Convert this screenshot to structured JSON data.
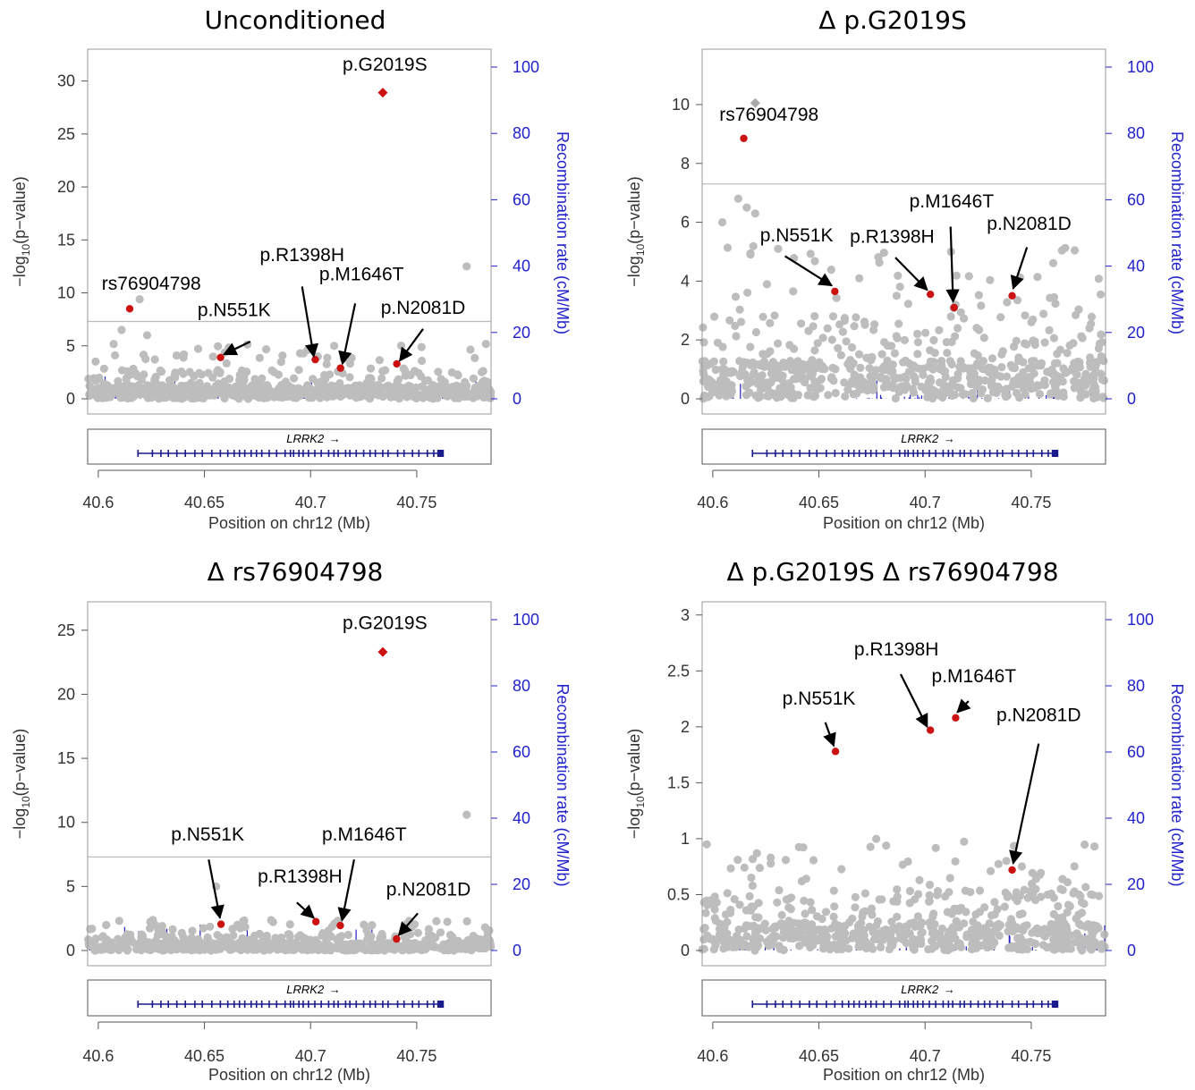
{
  "shared": {
    "ylabel": "−log10(p‑value)",
    "ylabel_main": "−log",
    "ylabel_sub": "10",
    "ylabel_rest": "(p−value)",
    "y2label": "Recombination rate (cM/Mb)",
    "xlabel": "Position on chr12 (Mb)",
    "gene": "LRRK2",
    "gene_arrow": "→",
    "xticks": [
      40.6,
      40.65,
      40.7,
      40.75
    ],
    "xtick_labels": [
      "40.6",
      "40.65",
      "40.7",
      "40.75"
    ],
    "xlim": [
      40.595,
      40.785
    ],
    "y2ticks": [
      0,
      20,
      40,
      60,
      80,
      100
    ],
    "y2lim": [
      0,
      100
    ],
    "gw_threshold": 7.3,
    "colors": {
      "background_points": "#bdbdbd",
      "highlight": "#cc1111",
      "recomb": "#2222cc",
      "gene": "#1a1a8c",
      "threshold": "#bbbbbb"
    },
    "gene_exons": [
      40.6187,
      40.6255,
      40.6295,
      40.633,
      40.637,
      40.641,
      40.6455,
      40.649,
      40.6535,
      40.6575,
      40.661,
      40.664,
      40.6665,
      40.669,
      40.672,
      40.6745,
      40.677,
      40.6805,
      40.684,
      40.688,
      40.6905,
      40.692,
      40.6945,
      40.6965,
      40.699,
      40.702,
      40.705,
      40.7085,
      40.711,
      40.713,
      40.7165,
      40.7185,
      40.7215,
      40.725,
      40.728,
      40.7305,
      40.734,
      40.7365,
      40.741,
      40.744,
      40.748,
      40.751,
      40.755,
      40.758,
      40.76,
      40.7615
    ]
  },
  "chart_data": [
    {
      "type": "scatter",
      "title": "Unconditioned",
      "ylim": [
        0,
        32.5
      ],
      "yticks": [
        0,
        5,
        10,
        15,
        20,
        25,
        30
      ],
      "max_bg": 5.2,
      "diamond_red": {
        "x": 40.734,
        "y": 28.9
      },
      "diamond_grey": null,
      "highlights": [
        {
          "label": "rs76904798",
          "x": 40.6148,
          "y": 8.5
        },
        {
          "label": "p.N551K",
          "x": 40.6576,
          "y": 3.9
        },
        {
          "label": "p.R1398H",
          "x": 40.7022,
          "y": 3.7
        },
        {
          "label": "p.M1646T",
          "x": 40.7141,
          "y": 2.9
        },
        {
          "label": "p.N2081D",
          "x": 40.7406,
          "y": 3.3
        }
      ],
      "extra_grey": [
        {
          "x": 40.7735,
          "y": 12.5
        },
        {
          "x": 40.6195,
          "y": 9.4
        },
        {
          "x": 40.611,
          "y": 6.5
        },
        {
          "x": 40.623,
          "y": 6.0
        }
      ],
      "labels": [
        {
          "text": "p.G2019S",
          "tx": 40.735,
          "ty": 31.0,
          "anchor": "middle",
          "arrow": null
        },
        {
          "text": "rs76904798",
          "tx": 40.625,
          "ty": 10.3,
          "anchor": "middle",
          "arrow": null
        },
        {
          "text": "p.N551K",
          "tx": 40.664,
          "ty": 7.8,
          "anchor": "middle",
          "arrow": [
            40.6716,
            5.4,
            40.6592,
            4.2
          ]
        },
        {
          "text": "p.R1398H",
          "tx": 40.696,
          "ty": 13.0,
          "anchor": "middle",
          "arrow": [
            40.696,
            10.6,
            40.7015,
            4.0
          ]
        },
        {
          "text": "p.M1646T",
          "tx": 40.724,
          "ty": 11.2,
          "anchor": "middle",
          "arrow": [
            40.721,
            9.0,
            40.715,
            3.3
          ]
        },
        {
          "text": "p.N2081D",
          "tx": 40.753,
          "ty": 8.0,
          "anchor": "middle",
          "arrow": [
            40.753,
            6.6,
            40.742,
            3.6
          ]
        }
      ]
    },
    {
      "type": "scatter",
      "title": "Δ p.G2019S",
      "ylim": [
        0,
        11.7
      ],
      "yticks": [
        0,
        2,
        4,
        6,
        8,
        10
      ],
      "max_bg": 5.2,
      "diamond_red": null,
      "diamond_grey": {
        "x": 40.62,
        "y": 10.05
      },
      "highlights": [
        {
          "label": "rs76904798",
          "x": 40.6146,
          "y": 8.85
        },
        {
          "label": "p.N551K",
          "x": 40.6575,
          "y": 3.65
        },
        {
          "label": "p.R1398H",
          "x": 40.7025,
          "y": 3.55
        },
        {
          "label": "p.M1646T",
          "x": 40.7137,
          "y": 3.1
        },
        {
          "label": "p.N2081D",
          "x": 40.741,
          "y": 3.5
        }
      ],
      "extra_grey": [
        {
          "x": 40.612,
          "y": 6.8
        },
        {
          "x": 40.616,
          "y": 6.5
        },
        {
          "x": 40.6045,
          "y": 6.0
        },
        {
          "x": 40.62,
          "y": 6.3
        }
      ],
      "labels": [
        {
          "text": "rs76904798",
          "tx": 40.6265,
          "ty": 9.45,
          "anchor": "middle",
          "arrow": null
        },
        {
          "text": "p.N551K",
          "tx": 40.6395,
          "ty": 5.35,
          "anchor": "middle",
          "arrow": [
            40.634,
            4.85,
            40.656,
            3.85
          ]
        },
        {
          "text": "p.R1398H",
          "tx": 40.6845,
          "ty": 5.3,
          "anchor": "middle",
          "arrow": [
            40.686,
            4.8,
            40.701,
            3.7
          ]
        },
        {
          "text": "p.M1646T",
          "tx": 40.7125,
          "ty": 6.5,
          "anchor": "middle",
          "arrow": [
            40.712,
            5.85,
            40.7132,
            3.3
          ]
        },
        {
          "text": "p.N2081D",
          "tx": 40.749,
          "ty": 5.75,
          "anchor": "middle",
          "arrow": [
            40.748,
            5.15,
            40.7415,
            3.75
          ]
        }
      ]
    },
    {
      "type": "scatter",
      "title": "Δ rs76904798",
      "ylim": [
        0,
        26.8
      ],
      "yticks": [
        0,
        5,
        10,
        15,
        20,
        25
      ],
      "max_bg": 2.4,
      "diamond_red": {
        "x": 40.734,
        "y": 23.3
      },
      "diamond_grey": null,
      "highlights": [
        {
          "label": "p.N551K",
          "x": 40.6578,
          "y": 2.05
        },
        {
          "label": "p.R1398H",
          "x": 40.7025,
          "y": 2.25
        },
        {
          "label": "p.M1646T",
          "x": 40.714,
          "y": 1.95
        },
        {
          "label": "p.N2081D",
          "x": 40.7405,
          "y": 0.9
        }
      ],
      "extra_grey": [
        {
          "x": 40.7735,
          "y": 10.6
        },
        {
          "x": 40.6555,
          "y": 5.0
        }
      ],
      "labels": [
        {
          "text": "p.G2019S",
          "tx": 40.735,
          "ty": 25.1,
          "anchor": "middle",
          "arrow": null
        },
        {
          "text": "p.N551K",
          "tx": 40.6515,
          "ty": 8.6,
          "anchor": "middle",
          "arrow": [
            40.652,
            7.1,
            40.6573,
            2.55
          ]
        },
        {
          "text": "p.R1398H",
          "tx": 40.695,
          "ty": 5.3,
          "anchor": "middle",
          "arrow": [
            40.6935,
            3.75,
            40.7015,
            2.55
          ]
        },
        {
          "text": "p.M1646T",
          "tx": 40.7253,
          "ty": 8.6,
          "anchor": "middle",
          "arrow": [
            40.7205,
            7.1,
            40.7148,
            2.35
          ]
        },
        {
          "text": "p.N2081D",
          "tx": 40.7555,
          "ty": 4.3,
          "anchor": "middle",
          "arrow": [
            40.7505,
            2.9,
            40.7415,
            1.2
          ]
        }
      ]
    },
    {
      "type": "scatter",
      "title": "Δ p.G2019S Δ rs76904798",
      "ylim": [
        0,
        3.07
      ],
      "yticks": [
        0,
        0.5,
        1,
        1.5,
        2,
        2.5,
        3
      ],
      "ytick_labels": [
        "0",
        "0.5",
        "1",
        "1.5",
        "2",
        "2.5",
        "3"
      ],
      "max_bg": 1.0,
      "diamond_red": null,
      "diamond_grey": null,
      "highlights": [
        {
          "label": "p.N551K",
          "x": 40.6578,
          "y": 1.78
        },
        {
          "label": "p.R1398H",
          "x": 40.7025,
          "y": 1.97
        },
        {
          "label": "p.M1646T",
          "x": 40.7144,
          "y": 2.08
        },
        {
          "label": "p.N2081D",
          "x": 40.741,
          "y": 0.72
        }
      ],
      "extra_grey": [],
      "labels": [
        {
          "text": "p.R1398H",
          "tx": 40.6865,
          "ty": 2.64,
          "anchor": "middle",
          "arrow": [
            40.6885,
            2.47,
            40.701,
            2.0
          ]
        },
        {
          "text": "p.M1646T",
          "tx": 40.723,
          "ty": 2.4,
          "anchor": "middle",
          "arrow": [
            40.7205,
            2.23,
            40.7152,
            2.13
          ]
        },
        {
          "text": "p.N551K",
          "tx": 40.65,
          "ty": 2.2,
          "anchor": "middle",
          "arrow": [
            40.653,
            2.04,
            40.657,
            1.83
          ]
        },
        {
          "text": "p.N2081D",
          "tx": 40.7535,
          "ty": 2.05,
          "anchor": "middle",
          "arrow": [
            40.7535,
            1.85,
            40.7415,
            0.78
          ]
        }
      ]
    }
  ]
}
